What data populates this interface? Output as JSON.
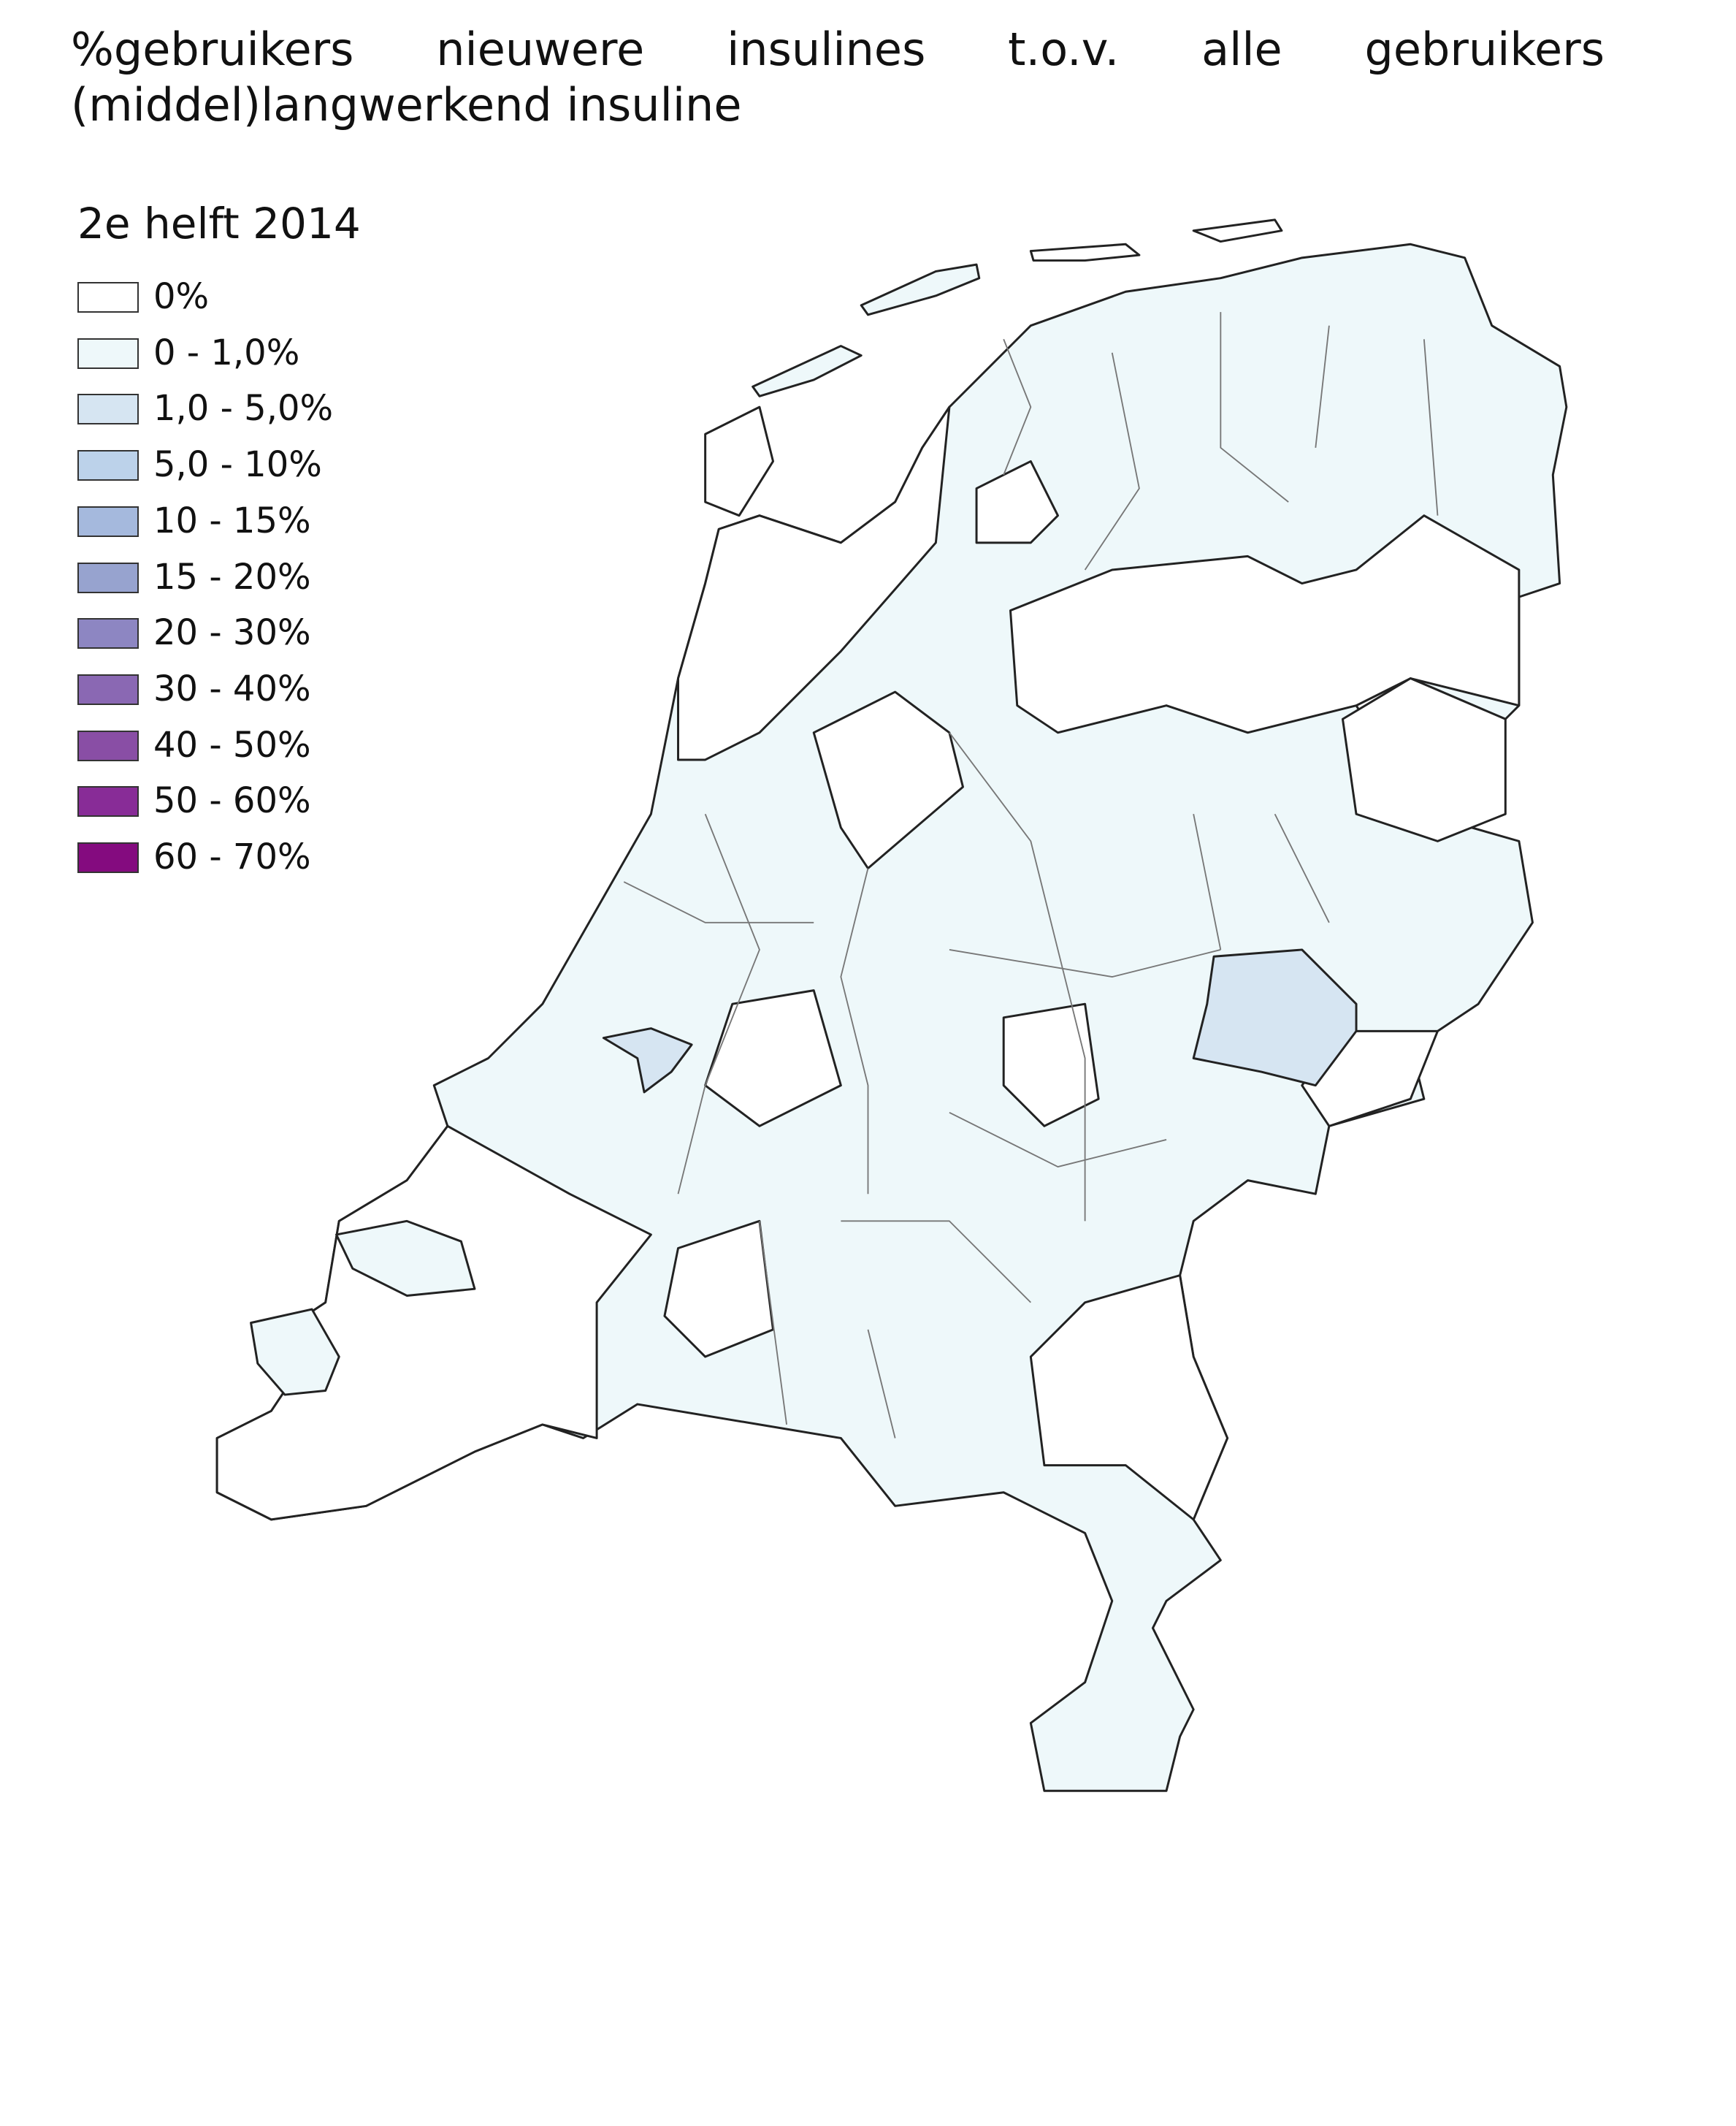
{
  "title": "%gebruikers nieuwere insulines t.o.v. alle gebruikers (middel)langwerkend insuline",
  "legend": {
    "title": "2e helft 2014",
    "items": [
      {
        "label": "0%",
        "color": "#ffffff"
      },
      {
        "label": "0 - 1,0%",
        "color": "#eef8fa"
      },
      {
        "label": "1,0 - 5,0%",
        "color": "#d6e5f2"
      },
      {
        "label": "5,0 - 10%",
        "color": "#bcd2ea"
      },
      {
        "label": "10 - 15%",
        "color": "#a5b9dd"
      },
      {
        "label": "15 - 20%",
        "color": "#97a3cf"
      },
      {
        "label": "20 - 30%",
        "color": "#8d86c2"
      },
      {
        "label": "30 - 40%",
        "color": "#8a68b3"
      },
      {
        "label": "40 - 50%",
        "color": "#894ea5"
      },
      {
        "label": "50 - 60%",
        "color": "#882c97"
      },
      {
        "label": "60 - 70%",
        "color": "#840b7f"
      }
    ]
  }
}
